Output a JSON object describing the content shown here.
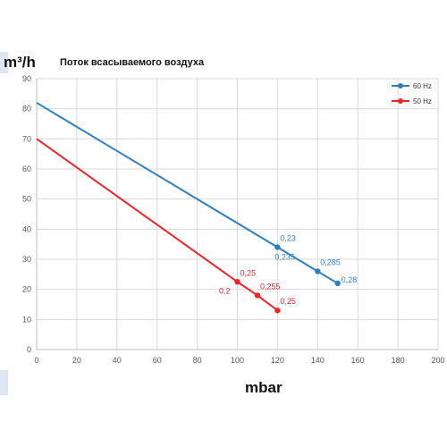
{
  "page": {
    "unit_label": "m³/h",
    "chart_title": "Поток всасываемого воздуха"
  },
  "chart_data": {
    "type": "line",
    "title": "Поток всасываемого воздуха",
    "ylabel": "m³/h",
    "xlabel": "mbar",
    "xlim": [
      0,
      200
    ],
    "ylim": [
      0,
      90
    ],
    "x_ticks": [
      0,
      20,
      40,
      60,
      80,
      100,
      120,
      140,
      160,
      180,
      200
    ],
    "y_ticks": [
      0,
      10,
      20,
      30,
      40,
      50,
      60,
      70,
      80,
      90
    ],
    "grid": true,
    "legend_position": "top-right",
    "series": [
      {
        "name": "60 Hz",
        "color": "#2e7fc1",
        "points": [
          [
            0,
            82
          ],
          [
            120,
            34
          ],
          [
            140,
            26
          ],
          [
            150,
            22
          ]
        ],
        "labels": [
          {
            "x": 120,
            "y": 34,
            "text": "0,23",
            "pos": "above-right"
          },
          {
            "x": 120,
            "y": 34,
            "text": "0,235",
            "pos": "below"
          },
          {
            "x": 140,
            "y": 26,
            "text": "0,285",
            "pos": "above-right"
          },
          {
            "x": 150,
            "y": 22,
            "text": "0,28",
            "pos": "right"
          }
        ]
      },
      {
        "name": "50 Hz",
        "color": "#e8262b",
        "points": [
          [
            0,
            70
          ],
          [
            100,
            22.5
          ],
          [
            110,
            18
          ],
          [
            120,
            13
          ]
        ],
        "labels": [
          {
            "x": 100,
            "y": 22.5,
            "text": "0,25",
            "pos": "above-right"
          },
          {
            "x": 100,
            "y": 22.5,
            "text": "0,2",
            "pos": "below-left"
          },
          {
            "x": 110,
            "y": 18,
            "text": "0,255",
            "pos": "above-right"
          },
          {
            "x": 120,
            "y": 13,
            "text": "0,25",
            "pos": "above-right"
          }
        ]
      }
    ]
  }
}
